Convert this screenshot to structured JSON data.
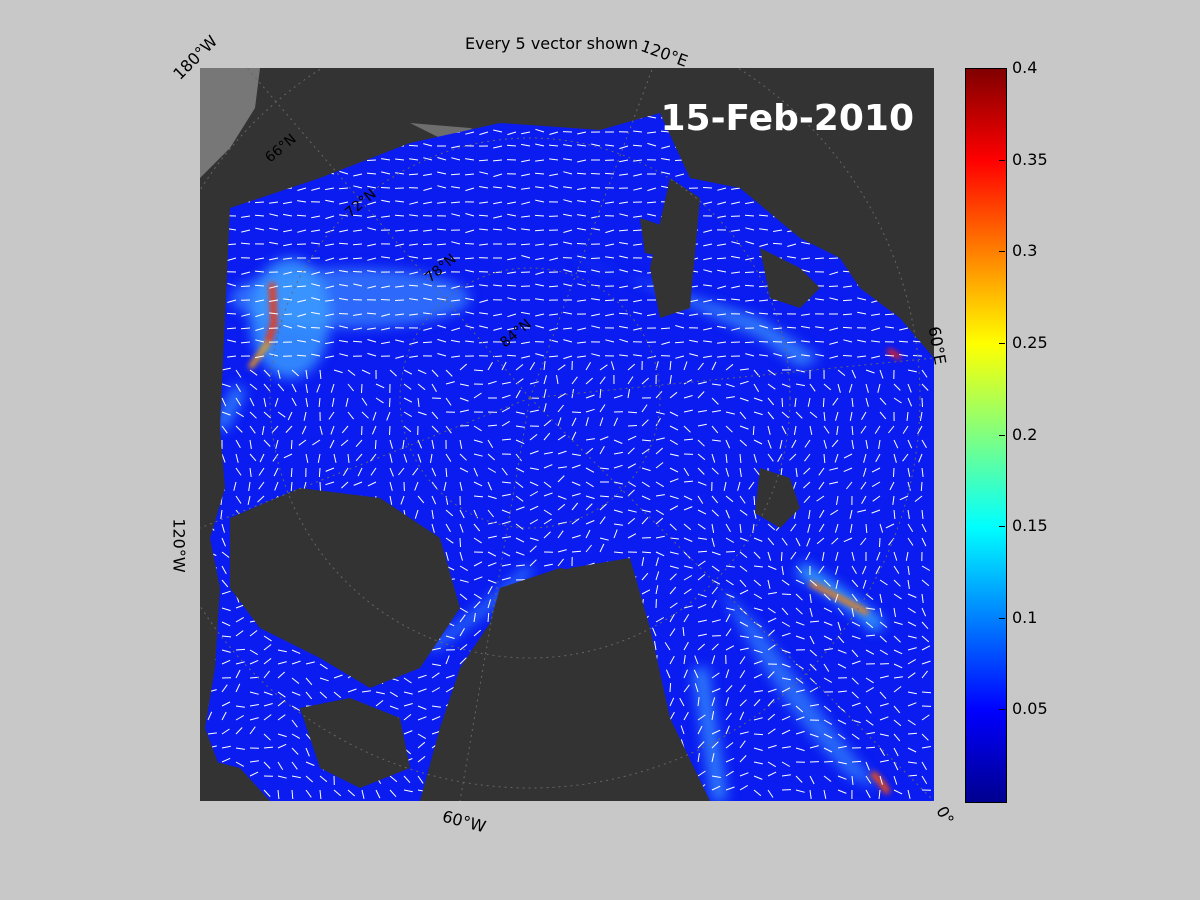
{
  "title": "Every 5 vector shown",
  "date": "15-Feb-2010",
  "longitude_labels": {
    "top_left": "180°W",
    "top_right": "120°E",
    "right": "60°E",
    "left": "120°W",
    "bottom": "60°W",
    "bottom_right": "0°"
  },
  "latitude_labels": [
    "66°N",
    "72°N",
    "78°N",
    "84°N"
  ],
  "colorbar": {
    "ticks": [
      "0.4",
      "0.35",
      "0.3",
      "0.25",
      "0.2",
      "0.15",
      "0.1",
      "0.05"
    ],
    "colormap": "jet",
    "min": 0,
    "max": 0.4
  },
  "colors": {
    "background": "#c8c8c8",
    "land": "#333333",
    "ocean_base": "#0a1cf0",
    "vectors": "#ffffff"
  }
}
